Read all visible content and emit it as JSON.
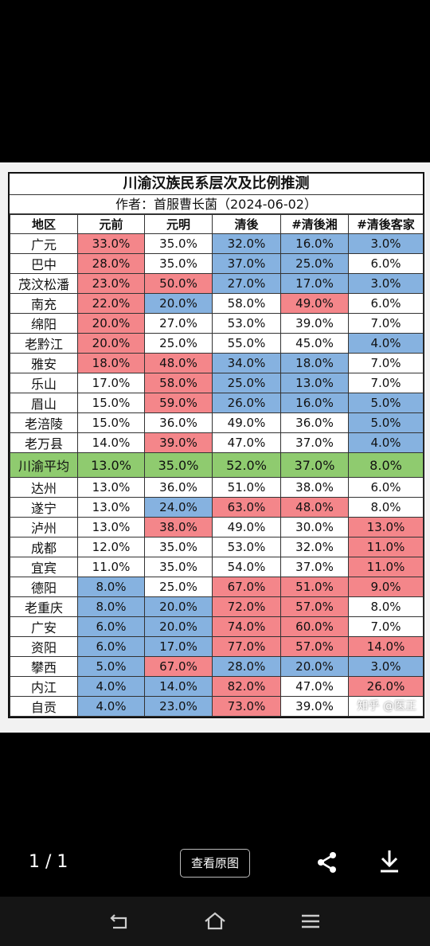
{
  "image": {
    "title": "川渝汉族民系层次及比例推测",
    "author": "作者：首服曹长菌（2024-06-02）",
    "watermark": "知乎 @医正",
    "headers": [
      "地区",
      "元前",
      "元明",
      "清後",
      "#清後湘",
      "#清後客家"
    ],
    "rows": [
      {
        "region": "广元",
        "vals": [
          "33.0%",
          "35.0%",
          "32.0%",
          "16.0%",
          "3.0%"
        ],
        "colors": [
          "r",
          "w",
          "b",
          "b",
          "b"
        ]
      },
      {
        "region": "巴中",
        "vals": [
          "28.0%",
          "35.0%",
          "37.0%",
          "25.0%",
          "6.0%"
        ],
        "colors": [
          "r",
          "w",
          "b",
          "b",
          "w"
        ]
      },
      {
        "region": "茂汶松潘",
        "vals": [
          "23.0%",
          "50.0%",
          "27.0%",
          "17.0%",
          "3.0%"
        ],
        "colors": [
          "r",
          "r",
          "b",
          "b",
          "b"
        ]
      },
      {
        "region": "南充",
        "vals": [
          "22.0%",
          "20.0%",
          "58.0%",
          "49.0%",
          "6.0%"
        ],
        "colors": [
          "r",
          "b",
          "w",
          "r",
          "w"
        ]
      },
      {
        "region": "绵阳",
        "vals": [
          "20.0%",
          "27.0%",
          "53.0%",
          "39.0%",
          "7.0%"
        ],
        "colors": [
          "r",
          "w",
          "w",
          "w",
          "w"
        ]
      },
      {
        "region": "老黔江",
        "vals": [
          "20.0%",
          "25.0%",
          "55.0%",
          "45.0%",
          "4.0%"
        ],
        "colors": [
          "r",
          "w",
          "w",
          "w",
          "b"
        ]
      },
      {
        "region": "雅安",
        "vals": [
          "18.0%",
          "48.0%",
          "34.0%",
          "18.0%",
          "7.0%"
        ],
        "colors": [
          "r",
          "r",
          "b",
          "b",
          "w"
        ]
      },
      {
        "region": "乐山",
        "vals": [
          "17.0%",
          "58.0%",
          "25.0%",
          "13.0%",
          "7.0%"
        ],
        "colors": [
          "w",
          "r",
          "b",
          "b",
          "w"
        ]
      },
      {
        "region": "眉山",
        "vals": [
          "15.0%",
          "59.0%",
          "26.0%",
          "16.0%",
          "5.0%"
        ],
        "colors": [
          "w",
          "r",
          "b",
          "b",
          "b"
        ]
      },
      {
        "region": "老涪陵",
        "vals": [
          "15.0%",
          "36.0%",
          "49.0%",
          "36.0%",
          "5.0%"
        ],
        "colors": [
          "w",
          "w",
          "w",
          "w",
          "b"
        ]
      },
      {
        "region": "老万县",
        "vals": [
          "14.0%",
          "39.0%",
          "47.0%",
          "37.0%",
          "4.0%"
        ],
        "colors": [
          "w",
          "r",
          "w",
          "w",
          "b"
        ]
      },
      {
        "region": "川渝平均",
        "vals": [
          "13.0%",
          "35.0%",
          "52.0%",
          "37.0%",
          "8.0%"
        ],
        "colors": [
          "g",
          "g",
          "g",
          "g",
          "g"
        ],
        "avg": true
      },
      {
        "region": "达州",
        "vals": [
          "13.0%",
          "36.0%",
          "51.0%",
          "38.0%",
          "6.0%"
        ],
        "colors": [
          "w",
          "w",
          "w",
          "w",
          "w"
        ]
      },
      {
        "region": "遂宁",
        "vals": [
          "13.0%",
          "24.0%",
          "63.0%",
          "48.0%",
          "8.0%"
        ],
        "colors": [
          "w",
          "b",
          "r",
          "r",
          "w"
        ]
      },
      {
        "region": "泸州",
        "vals": [
          "13.0%",
          "38.0%",
          "49.0%",
          "30.0%",
          "13.0%"
        ],
        "colors": [
          "w",
          "r",
          "w",
          "w",
          "r"
        ]
      },
      {
        "region": "成都",
        "vals": [
          "12.0%",
          "35.0%",
          "53.0%",
          "32.0%",
          "11.0%"
        ],
        "colors": [
          "w",
          "w",
          "w",
          "w",
          "r"
        ]
      },
      {
        "region": "宜宾",
        "vals": [
          "11.0%",
          "35.0%",
          "54.0%",
          "37.0%",
          "11.0%"
        ],
        "colors": [
          "w",
          "w",
          "w",
          "w",
          "r"
        ]
      },
      {
        "region": "德阳",
        "vals": [
          "8.0%",
          "25.0%",
          "67.0%",
          "51.0%",
          "9.0%"
        ],
        "colors": [
          "b",
          "w",
          "r",
          "r",
          "r"
        ]
      },
      {
        "region": "老重庆",
        "vals": [
          "8.0%",
          "20.0%",
          "72.0%",
          "57.0%",
          "8.0%"
        ],
        "colors": [
          "b",
          "b",
          "r",
          "r",
          "w"
        ]
      },
      {
        "region": "广安",
        "vals": [
          "6.0%",
          "20.0%",
          "74.0%",
          "60.0%",
          "7.0%"
        ],
        "colors": [
          "b",
          "b",
          "r",
          "r",
          "w"
        ]
      },
      {
        "region": "资阳",
        "vals": [
          "6.0%",
          "17.0%",
          "77.0%",
          "57.0%",
          "14.0%"
        ],
        "colors": [
          "b",
          "b",
          "r",
          "r",
          "r"
        ]
      },
      {
        "region": "攀西",
        "vals": [
          "5.0%",
          "67.0%",
          "28.0%",
          "20.0%",
          "3.0%"
        ],
        "colors": [
          "b",
          "r",
          "b",
          "b",
          "b"
        ]
      },
      {
        "region": "内江",
        "vals": [
          "4.0%",
          "14.0%",
          "82.0%",
          "47.0%",
          "26.0%"
        ],
        "colors": [
          "b",
          "b",
          "r",
          "w",
          "r"
        ]
      },
      {
        "region": "自贡",
        "vals": [
          "4.0%",
          "23.0%",
          "73.0%",
          "39.0%",
          ""
        ],
        "colors": [
          "b",
          "b",
          "r",
          "w",
          "w"
        ]
      }
    ]
  },
  "viewer": {
    "page_counter": "1 / 1",
    "view_original_label": "查看原图"
  },
  "icons": {
    "share": "share-icon",
    "download": "download-icon",
    "back": "back-icon",
    "home": "home-icon",
    "menu": "menu-icon"
  }
}
